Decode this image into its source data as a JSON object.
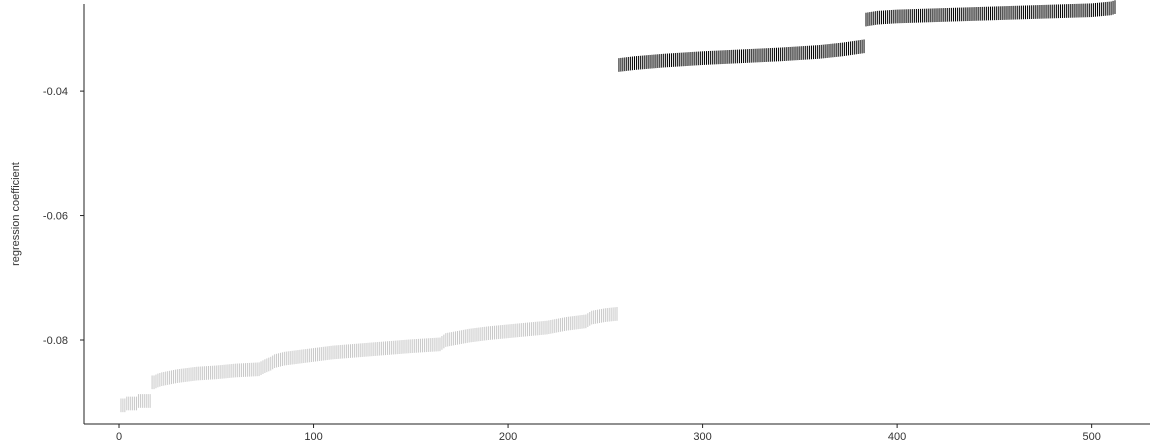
{
  "chart_data": {
    "type": "scatter",
    "title": "",
    "xlabel": "",
    "ylabel": "regression coefficient",
    "xlim": [
      -18,
      530
    ],
    "ylim": [
      -0.0935,
      -0.026
    ],
    "xticks": [
      0,
      100,
      200,
      300,
      400,
      500
    ],
    "xtick_labels": [
      "0",
      "100",
      "200",
      "300",
      "400",
      "500"
    ],
    "yticks": [
      -0.04,
      -0.06,
      -0.08
    ],
    "ytick_labels": [
      "-0.04",
      "-0.06",
      "-0.08"
    ],
    "grid": false,
    "legend": "none",
    "marker": "vertical-segment",
    "interval_halfwidth": 0.0011,
    "series": [
      {
        "color": "#c8c8c8",
        "x_range": [
          1,
          256
        ],
        "knots_x": [
          1,
          3,
          4,
          9,
          10,
          16,
          17,
          18,
          20,
          22,
          30,
          40,
          50,
          60,
          72,
          75,
          78,
          80,
          85,
          95,
          110,
          130,
          150,
          165,
          168,
          180,
          190,
          200,
          210,
          220,
          230,
          240,
          243,
          250,
          256
        ],
        "knots_y": [
          -0.0905,
          -0.0905,
          -0.0902,
          -0.0902,
          -0.0898,
          -0.0898,
          -0.0868,
          -0.0868,
          -0.0865,
          -0.0863,
          -0.0858,
          -0.0854,
          -0.0852,
          -0.0849,
          -0.0847,
          -0.0842,
          -0.0838,
          -0.0834,
          -0.083,
          -0.0826,
          -0.082,
          -0.0815,
          -0.081,
          -0.0807,
          -0.08,
          -0.0793,
          -0.0789,
          -0.0786,
          -0.0783,
          -0.078,
          -0.0774,
          -0.077,
          -0.0764,
          -0.076,
          -0.0758
        ]
      },
      {
        "color": "#000000",
        "x_range": [
          257,
          512
        ],
        "knots_x": [
          257,
          265,
          280,
          300,
          320,
          340,
          360,
          372,
          383,
          384,
          390,
          400,
          420,
          440,
          460,
          480,
          500,
          510,
          512
        ],
        "knots_y": [
          -0.0358,
          -0.0355,
          -0.0351,
          -0.0347,
          -0.0344,
          -0.0341,
          -0.0337,
          -0.0333,
          -0.0328,
          -0.0285,
          -0.0282,
          -0.028,
          -0.0278,
          -0.0276,
          -0.0274,
          -0.0272,
          -0.027,
          -0.0267,
          -0.0265
        ]
      }
    ]
  }
}
